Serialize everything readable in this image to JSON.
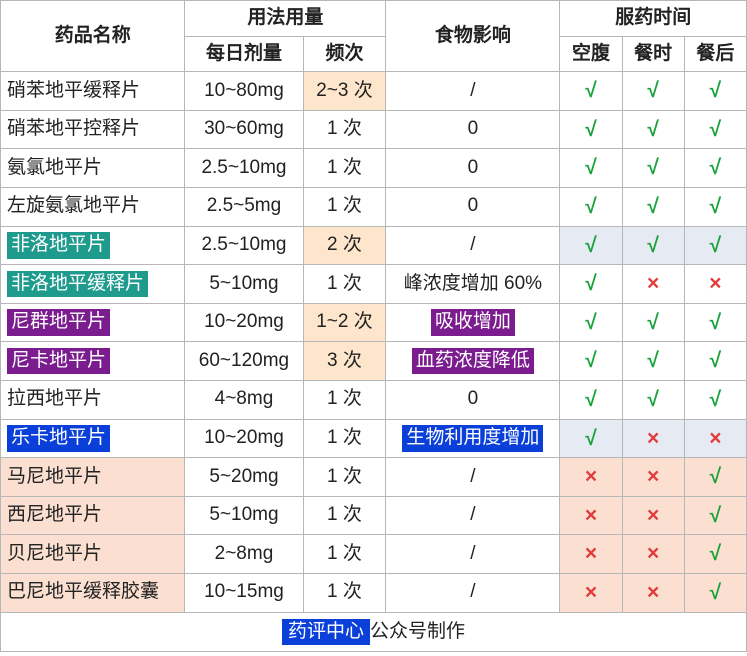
{
  "colors": {
    "border": "#b7b7b7",
    "text": "#222222",
    "check": "#19a23a",
    "cross": "#e23b3b",
    "hl_freq_bg": "#fde6cc",
    "hl_time_bg": "#e6eaf3",
    "hl_time_bg_alt": "#fbe0d2",
    "pill_teal": "#1f9b8e",
    "pill_purple": "#7b1d8e",
    "pill_blue": "#0a3fda",
    "pill_text": "#ffffff",
    "footer_plain": "#222222"
  },
  "header": {
    "name": "药品名称",
    "usage_group": "用法用量",
    "dose": "每日剂量",
    "freq": "频次",
    "food": "食物影响",
    "time_group": "服药时间",
    "t_empty": "空腹",
    "t_with": "餐时",
    "t_after": "餐后"
  },
  "marks": {
    "yes": "√",
    "no": "×"
  },
  "footer": {
    "pill": "药评中心",
    "plain": "公众号制作"
  },
  "rows": [
    {
      "name": "硝苯地平缓释片",
      "name_pill": null,
      "dose": "10~80mg",
      "freq": "2~3 次",
      "freq_hl": true,
      "food": "/",
      "food_pill": null,
      "t1": "y",
      "t2": "y",
      "t3": "y",
      "time_hl": null
    },
    {
      "name": "硝苯地平控释片",
      "name_pill": null,
      "dose": "30~60mg",
      "freq": "1 次",
      "freq_hl": false,
      "food": "0",
      "food_pill": null,
      "t1": "y",
      "t2": "y",
      "t3": "y",
      "time_hl": null
    },
    {
      "name": "氨氯地平片",
      "name_pill": null,
      "dose": "2.5~10mg",
      "freq": "1 次",
      "freq_hl": false,
      "food": "0",
      "food_pill": null,
      "t1": "y",
      "t2": "y",
      "t3": "y",
      "time_hl": null
    },
    {
      "name": "左旋氨氯地平片",
      "name_pill": null,
      "dose": "2.5~5mg",
      "freq": "1 次",
      "freq_hl": false,
      "food": "0",
      "food_pill": null,
      "t1": "y",
      "t2": "y",
      "t3": "y",
      "time_hl": null
    },
    {
      "name": "非洛地平片",
      "name_pill": "teal",
      "dose": "2.5~10mg",
      "freq": "2 次",
      "freq_hl": true,
      "food": "/",
      "food_pill": null,
      "t1": "y",
      "t2": "y",
      "t3": "y",
      "time_hl": "blue"
    },
    {
      "name": "非洛地平缓释片",
      "name_pill": "teal",
      "dose": "5~10mg",
      "freq": "1 次",
      "freq_hl": false,
      "food": "峰浓度增加 60%",
      "food_pill": null,
      "t1": "y",
      "t2": "n",
      "t3": "n",
      "time_hl": null
    },
    {
      "name": "尼群地平片",
      "name_pill": "purple",
      "dose": "10~20mg",
      "freq": "1~2 次",
      "freq_hl": true,
      "food": "吸收增加",
      "food_pill": "purple",
      "t1": "y",
      "t2": "y",
      "t3": "y",
      "time_hl": null
    },
    {
      "name": "尼卡地平片",
      "name_pill": "purple",
      "dose": "60~120mg",
      "freq": "3 次",
      "freq_hl": true,
      "food": "血药浓度降低",
      "food_pill": "purple",
      "t1": "y",
      "t2": "y",
      "t3": "y",
      "time_hl": null
    },
    {
      "name": "拉西地平片",
      "name_pill": null,
      "dose": "4~8mg",
      "freq": "1 次",
      "freq_hl": false,
      "food": "0",
      "food_pill": null,
      "t1": "y",
      "t2": "y",
      "t3": "y",
      "time_hl": null
    },
    {
      "name": "乐卡地平片",
      "name_pill": "blue",
      "dose": "10~20mg",
      "freq": "1 次",
      "freq_hl": false,
      "food": "生物利用度增加",
      "food_pill": "blue",
      "t1": "y",
      "t2": "n",
      "t3": "n",
      "time_hl": "blue"
    },
    {
      "name": "马尼地平片",
      "name_pill": null,
      "name_bg": "peach",
      "dose": "5~20mg",
      "freq": "1 次",
      "freq_hl": false,
      "food": "/",
      "food_pill": null,
      "t1": "n",
      "t2": "n",
      "t3": "y",
      "time_hl": "peach"
    },
    {
      "name": "西尼地平片",
      "name_pill": null,
      "name_bg": "peach",
      "dose": "5~10mg",
      "freq": "1 次",
      "freq_hl": false,
      "food": "/",
      "food_pill": null,
      "t1": "n",
      "t2": "n",
      "t3": "y",
      "time_hl": "peach"
    },
    {
      "name": "贝尼地平片",
      "name_pill": null,
      "name_bg": "peach",
      "dose": "2~8mg",
      "freq": "1 次",
      "freq_hl": false,
      "food": "/",
      "food_pill": null,
      "t1": "n",
      "t2": "n",
      "t3": "y",
      "time_hl": "peach"
    },
    {
      "name": "巴尼地平缓释胶囊",
      "name_pill": null,
      "name_bg": "peach",
      "dose": "10~15mg",
      "freq": "1 次",
      "freq_hl": false,
      "food": "/",
      "food_pill": null,
      "t1": "n",
      "t2": "n",
      "t3": "y",
      "time_hl": "peach"
    }
  ]
}
